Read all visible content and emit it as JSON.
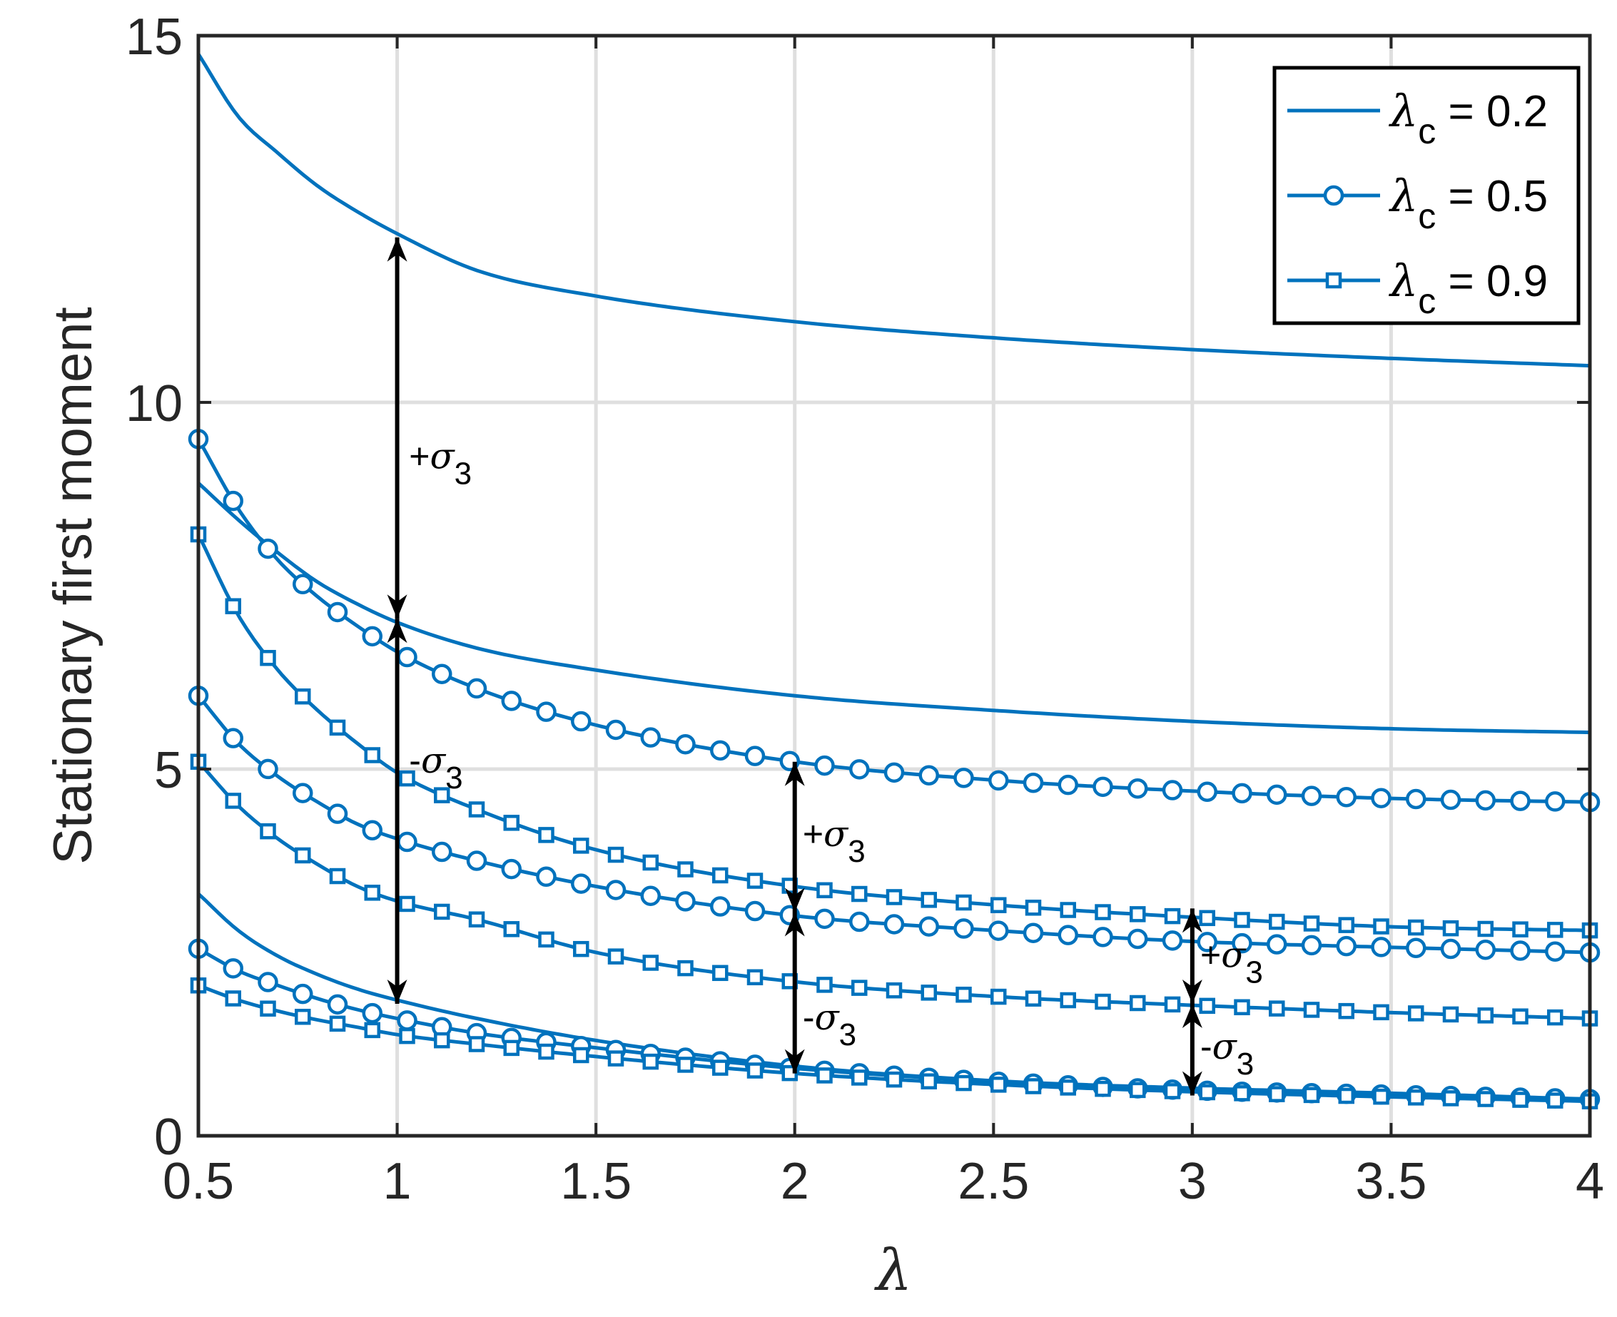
{
  "chart_data": {
    "type": "line",
    "xlabel": "λ",
    "ylabel": "Stationary first moment",
    "xlim": [
      0.5,
      4
    ],
    "ylim": [
      0,
      15
    ],
    "xticks": [
      0.5,
      1,
      1.5,
      2,
      2.5,
      3,
      3.5,
      4
    ],
    "xtick_labels": [
      "0.5",
      "1",
      "1.5",
      "2",
      "2.5",
      "3",
      "3.5",
      "4"
    ],
    "yticks": [
      0,
      5,
      10,
      15
    ],
    "ytick_labels": [
      "0",
      "5",
      "10",
      "15"
    ],
    "grid": true,
    "legend_position": "top-right",
    "line_color": "#0072BD",
    "legend": [
      {
        "label_prefix": "λ",
        "label_sub": "c",
        "label_suffix": " = 0.2",
        "marker": "none"
      },
      {
        "label_prefix": "λ",
        "label_sub": "c",
        "label_suffix": " = 0.5",
        "marker": "circle"
      },
      {
        "label_prefix": "λ",
        "label_sub": "c",
        "label_suffix": " = 0.9",
        "marker": "square"
      }
    ],
    "series": [
      {
        "group": "λc = 0.2",
        "band": "upper",
        "marker": "none",
        "x": [
          0.5,
          0.6,
          0.7,
          0.8,
          0.9,
          1,
          1.2,
          1.5,
          2,
          2.5,
          3,
          3.5,
          4
        ],
        "y": [
          14.75,
          13.9,
          13.4,
          12.95,
          12.6,
          12.3,
          11.8,
          11.45,
          11.1,
          10.88,
          10.72,
          10.6,
          10.5
        ]
      },
      {
        "group": "λc = 0.2",
        "band": "mean",
        "marker": "none",
        "x": [
          0.5,
          0.6,
          0.7,
          0.8,
          0.9,
          1,
          1.2,
          1.5,
          2,
          2.5,
          3,
          3.5,
          4
        ],
        "y": [
          8.9,
          8.4,
          7.95,
          7.55,
          7.25,
          7.0,
          6.65,
          6.35,
          6.0,
          5.8,
          5.65,
          5.55,
          5.5
        ]
      },
      {
        "group": "λc = 0.2",
        "band": "lower",
        "marker": "none",
        "x": [
          0.5,
          0.6,
          0.7,
          0.8,
          0.9,
          1,
          1.2,
          1.5,
          2,
          2.5,
          3,
          3.5,
          4
        ],
        "y": [
          3.3,
          2.8,
          2.45,
          2.2,
          2.0,
          1.85,
          1.6,
          1.3,
          0.95,
          0.75,
          0.65,
          0.58,
          0.5
        ]
      },
      {
        "group": "λc = 0.5",
        "band": "upper",
        "marker": "circle",
        "x": [
          0.5,
          0.6,
          0.7,
          0.8,
          0.9,
          1,
          1.2,
          1.5,
          2,
          2.5,
          3,
          3.5,
          4
        ],
        "y": [
          9.5,
          8.55,
          7.85,
          7.35,
          6.95,
          6.6,
          6.1,
          5.6,
          5.1,
          4.85,
          4.7,
          4.6,
          4.55
        ]
      },
      {
        "group": "λc = 0.5",
        "band": "mean",
        "marker": "circle",
        "x": [
          0.5,
          0.6,
          0.7,
          0.8,
          0.9,
          1,
          1.2,
          1.5,
          2,
          2.5,
          3,
          3.5,
          4
        ],
        "y": [
          6.0,
          5.35,
          4.9,
          4.55,
          4.25,
          4.05,
          3.75,
          3.4,
          3.0,
          2.8,
          2.65,
          2.57,
          2.5
        ]
      },
      {
        "group": "λc = 0.5",
        "band": "lower",
        "marker": "circle",
        "x": [
          0.5,
          0.6,
          0.7,
          0.8,
          0.9,
          1,
          1.2,
          1.5,
          2,
          2.5,
          3,
          3.5,
          4
        ],
        "y": [
          2.55,
          2.25,
          2.05,
          1.87,
          1.72,
          1.6,
          1.4,
          1.2,
          0.92,
          0.74,
          0.62,
          0.56,
          0.5
        ]
      },
      {
        "group": "λc = 0.9",
        "band": "upper",
        "marker": "square",
        "x": [
          0.5,
          0.6,
          0.7,
          0.8,
          0.9,
          1,
          1.2,
          1.5,
          2,
          2.5,
          3,
          3.5,
          4
        ],
        "y": [
          8.2,
          7.1,
          6.35,
          5.8,
          5.35,
          4.95,
          4.45,
          3.9,
          3.4,
          3.15,
          2.98,
          2.85,
          2.8
        ]
      },
      {
        "group": "λc = 0.9",
        "band": "mean",
        "marker": "square",
        "x": [
          0.5,
          0.6,
          0.7,
          0.8,
          0.9,
          1,
          1.2,
          1.5,
          2,
          2.5,
          3,
          3.5,
          4
        ],
        "y": [
          5.1,
          4.5,
          4.05,
          3.7,
          3.4,
          3.2,
          2.95,
          2.5,
          2.1,
          1.9,
          1.78,
          1.68,
          1.6
        ]
      },
      {
        "group": "λc = 0.9",
        "band": "lower",
        "marker": "square",
        "x": [
          0.5,
          0.6,
          0.7,
          0.8,
          0.9,
          1,
          1.2,
          1.5,
          2,
          2.5,
          3,
          3.5,
          4
        ],
        "y": [
          2.05,
          1.85,
          1.7,
          1.58,
          1.48,
          1.38,
          1.25,
          1.08,
          0.85,
          0.7,
          0.6,
          0.53,
          0.47
        ]
      }
    ],
    "annotations": [
      {
        "type": "double-arrow",
        "x": 1,
        "y1": 7.05,
        "y2": 12.25
      },
      {
        "type": "double-arrow",
        "x": 1,
        "y1": 1.8,
        "y2": 7.05
      },
      {
        "type": "double-arrow",
        "x": 2,
        "y1": 3.05,
        "y2": 5.1
      },
      {
        "type": "double-arrow",
        "x": 2,
        "y1": 0.85,
        "y2": 3.05
      },
      {
        "type": "double-arrow",
        "x": 3,
        "y1": 1.8,
        "y2": 3.1
      },
      {
        "type": "double-arrow",
        "x": 3,
        "y1": 0.55,
        "y2": 1.8
      },
      {
        "type": "label",
        "sign": "+",
        "text": "σ",
        "sub": "3",
        "x": 1.03,
        "y": 9.1
      },
      {
        "type": "label",
        "sign": "-",
        "text": "σ",
        "sub": "3",
        "x": 1.03,
        "y": 4.95
      },
      {
        "type": "label",
        "sign": "+",
        "text": "σ",
        "sub": "3",
        "x": 2.02,
        "y": 3.95
      },
      {
        "type": "label",
        "sign": "-",
        "text": "σ",
        "sub": "3",
        "x": 2.02,
        "y": 1.45
      },
      {
        "type": "label",
        "sign": "+",
        "text": "σ",
        "sub": "3",
        "x": 3.02,
        "y": 2.3
      },
      {
        "type": "label",
        "sign": "-",
        "text": "σ",
        "sub": "3",
        "x": 3.02,
        "y": 1.05
      }
    ]
  }
}
